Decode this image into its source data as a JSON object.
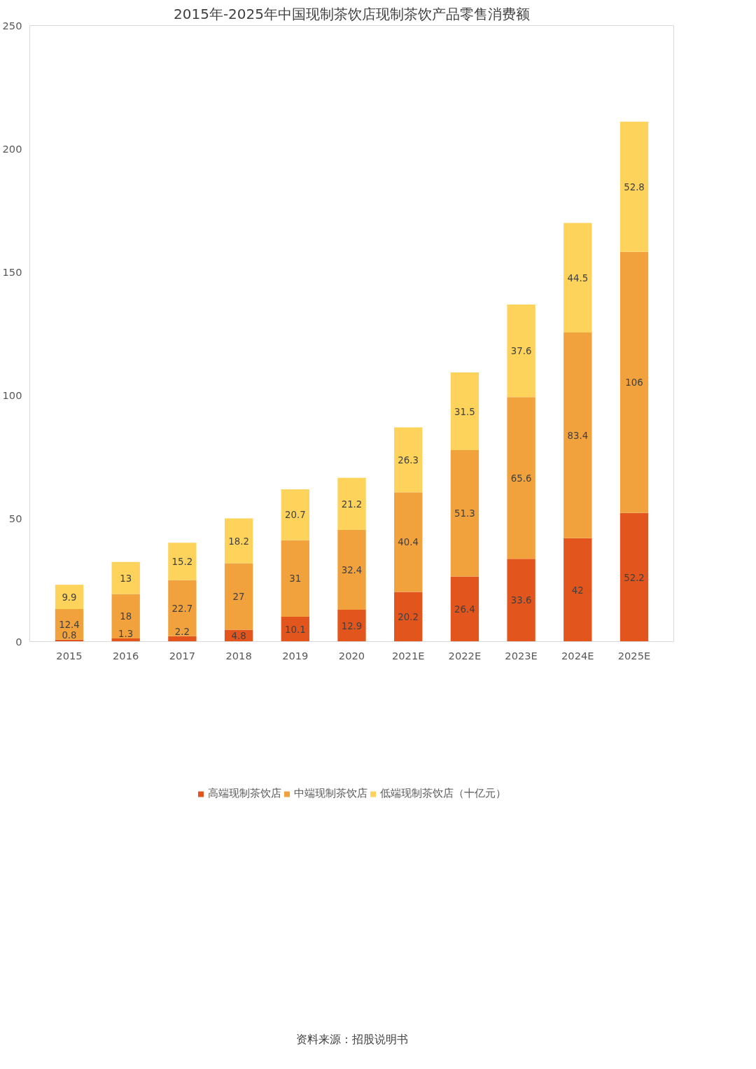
{
  "chart_data": {
    "type": "bar",
    "stacked": true,
    "title": "2015年-2025年中国现制茶饮店现制茶饮产品零售消费额",
    "categories": [
      "2015",
      "2016",
      "2017",
      "2018",
      "2019",
      "2020",
      "2021E",
      "2022E",
      "2023E",
      "2024E",
      "2025E"
    ],
    "series": [
      {
        "name": "高端现制茶饮店",
        "color": "#e2561e",
        "values": [
          0.8,
          1.3,
          2.2,
          4.8,
          10.1,
          12.9,
          20.2,
          26.4,
          33.6,
          42,
          52.2
        ]
      },
      {
        "name": "中端现制茶饮店",
        "color": "#f2a23c",
        "values": [
          12.4,
          18,
          22.7,
          27,
          31,
          32.4,
          40.4,
          51.3,
          65.6,
          83.4,
          106
        ]
      },
      {
        "name": "低端现制茶饮店（十亿元）",
        "color": "#fdd35c",
        "values": [
          9.9,
          13,
          15.2,
          18.2,
          20.7,
          21.2,
          26.3,
          31.5,
          37.6,
          44.5,
          52.8
        ]
      }
    ],
    "ylim": [
      0,
      250
    ],
    "yticks": [
      0,
      50,
      100,
      150,
      200,
      250
    ],
    "grid": false,
    "legend": "bottom",
    "data_labels": true,
    "annotations": [
      "资料来源：招股说明书"
    ]
  }
}
